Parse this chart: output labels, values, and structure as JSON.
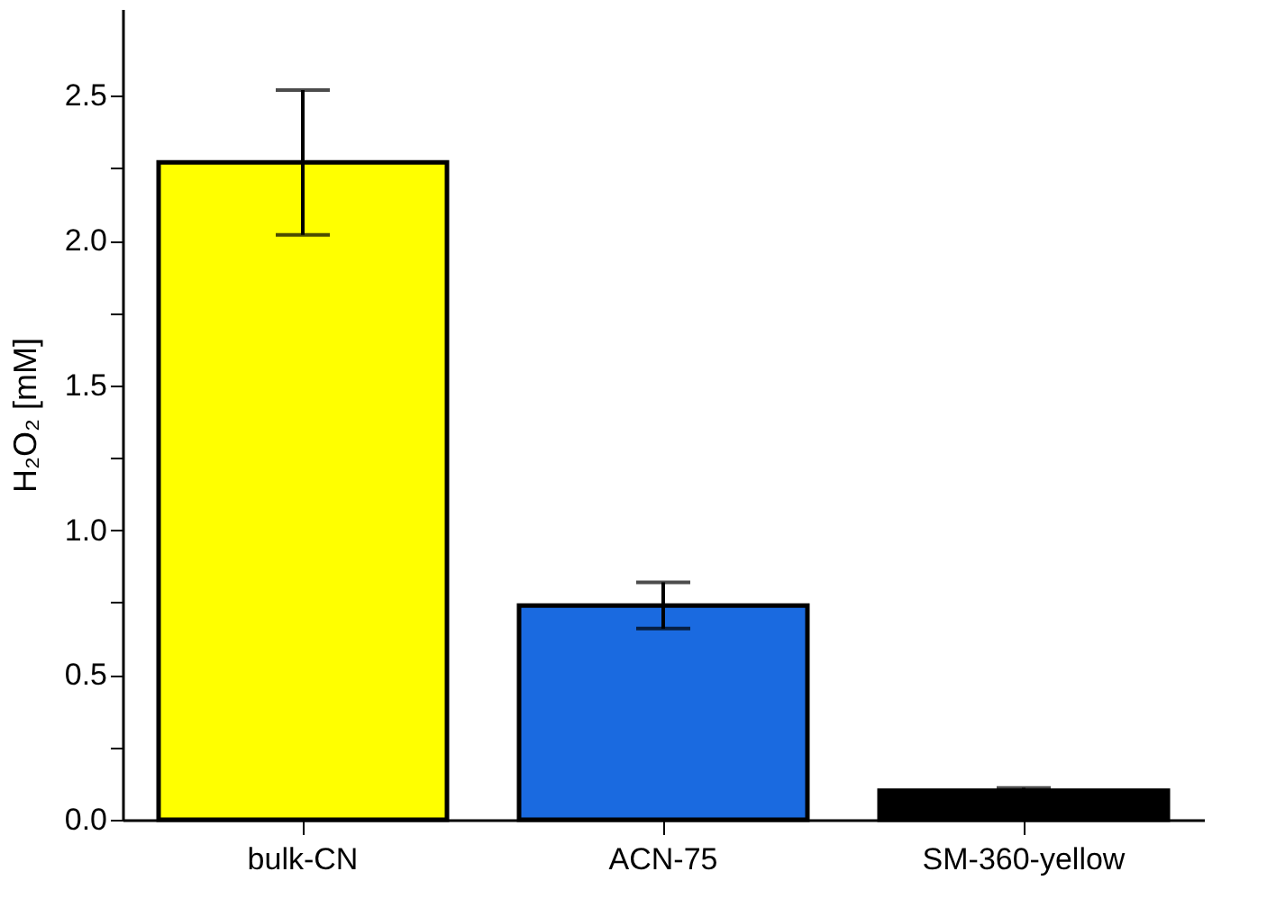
{
  "chart_data": {
    "type": "bar",
    "ylabel": "H₂O₂ [mM]",
    "categories": [
      "bulk-CN",
      "ACN-75",
      "SM-360-yellow"
    ],
    "values": [
      2.27,
      0.74,
      0.1
    ],
    "colors": [
      "#ffff00",
      "#1a6ae0",
      "#000000"
    ],
    "errors": [
      0.25,
      0.08,
      0.01
    ],
    "ylim": [
      0,
      2.8
    ],
    "yticks": [
      {
        "value": 0,
        "label": "0.0"
      },
      {
        "value": 0.25,
        "label": null
      },
      0.5,
      {
        "value": 0.75,
        "label": null
      },
      {
        "value": 1,
        "label": "1.0"
      },
      {
        "value": 1.25,
        "label": null
      },
      1.5,
      {
        "value": 1.75,
        "label": null
      },
      {
        "value": 2,
        "label": "2.0"
      },
      {
        "value": 2.25,
        "label": null
      },
      2.5
    ],
    "grid": false
  }
}
